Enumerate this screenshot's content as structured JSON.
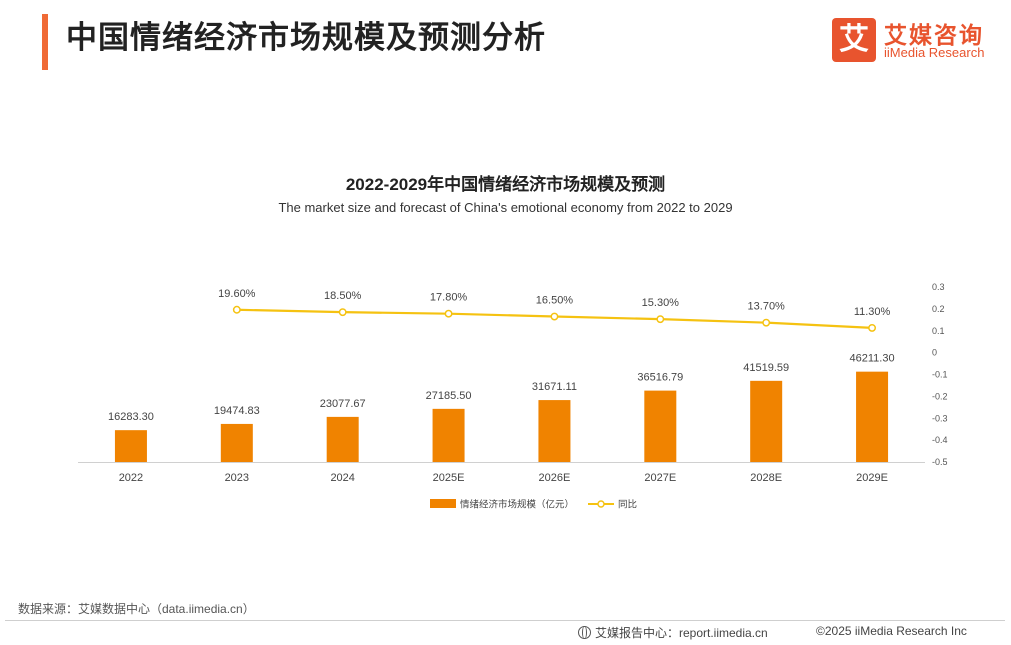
{
  "header": {
    "title": "中国情绪经济市场规模及预测分析",
    "accent_color": "#f06a35"
  },
  "logo": {
    "glyph": "艾",
    "name_cn": "艾媒咨询",
    "name_en": "iiMedia Research",
    "color": "#e8542e"
  },
  "chart_data": {
    "type": "bar",
    "title": "2022-2029年中国情绪经济市场规模及预测",
    "subtitle": "The market size and forecast of China's emotional economy from 2022 to 2029",
    "categories": [
      "2022",
      "2023",
      "2024",
      "2025E",
      "2026E",
      "2027E",
      "2028E",
      "2029E"
    ],
    "series": [
      {
        "name": "情绪经济市场规模（亿元）",
        "type": "bar",
        "axis": "left",
        "color": "#f08300",
        "values": [
          16283.3,
          19474.83,
          23077.67,
          27185.5,
          31671.11,
          36516.79,
          41519.59,
          46211.3
        ],
        "labels": [
          "16283.30",
          "19474.83",
          "23077.67",
          "27185.50",
          "31671.11",
          "36516.79",
          "41519.59",
          "46211.30"
        ]
      },
      {
        "name": "同比",
        "type": "line",
        "axis": "right",
        "color": "#f5c211",
        "values": [
          null,
          0.196,
          0.185,
          0.178,
          0.165,
          0.153,
          0.137,
          0.113
        ],
        "labels": [
          "",
          "19.60%",
          "18.50%",
          "17.80%",
          "16.50%",
          "15.30%",
          "13.70%",
          "11.30%"
        ]
      }
    ],
    "right_axis": {
      "ylim": [
        -0.5,
        0.3
      ],
      "ticks": [
        "0.3",
        "0.2",
        "0.1",
        "0",
        "-0.1",
        "-0.2",
        "-0.3",
        "-0.4",
        "-0.5"
      ]
    },
    "left_axis_visible": false,
    "grid": false,
    "legend_position": "bottom-center"
  },
  "footer": {
    "source": "数据来源：艾媒数据中心（data.iimedia.cn）",
    "report_center": "艾媒报告中心：report.iimedia.cn",
    "copyright": "©2025  iiMedia Research  Inc"
  }
}
